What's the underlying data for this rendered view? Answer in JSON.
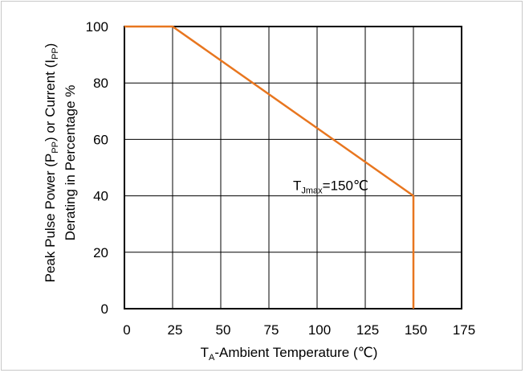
{
  "chart_data": {
    "type": "line",
    "title": "",
    "xlabel": {
      "prefix": "T",
      "sub": "A",
      "rest": "-Ambient Temperature (℃)"
    },
    "ylabel": {
      "line1": {
        "prefix": "Peak Pulse Power (P",
        "sub1": "PP",
        "mid": ") or Current (I",
        "sub2": "PP",
        "suffix": ")"
      },
      "line2": "Derating in Percentage %"
    },
    "xlim": [
      0,
      175
    ],
    "ylim": [
      0,
      100
    ],
    "xticks": [
      0,
      25,
      50,
      75,
      100,
      125,
      150,
      175
    ],
    "yticks": [
      0,
      20,
      40,
      60,
      80,
      100
    ],
    "grid": true,
    "series": [
      {
        "color": "#e8761f",
        "points": [
          [
            0,
            100
          ],
          [
            25,
            100
          ],
          [
            150,
            40
          ],
          [
            150,
            0
          ]
        ]
      }
    ],
    "annotation": {
      "prefix": "T",
      "sub": "Jmax",
      "suffix": "=150℃",
      "x": 125,
      "y": 50
    }
  }
}
